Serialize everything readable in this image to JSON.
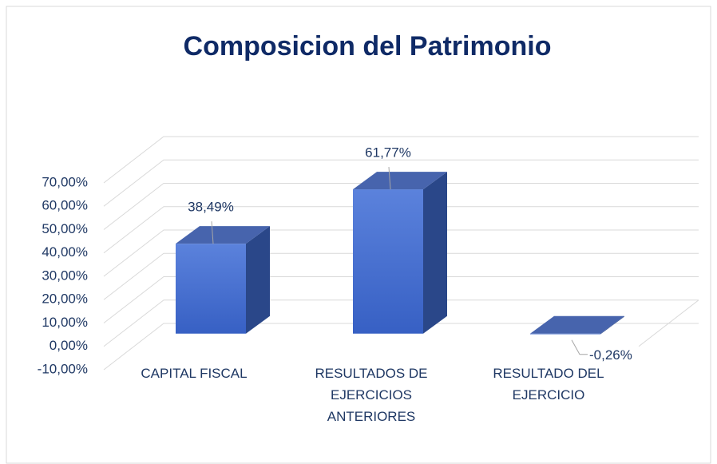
{
  "chart_data": {
    "type": "bar3d",
    "title": "Composicion del Patrimonio",
    "categories": [
      "CAPITAL FISCAL",
      "RESULTADOS DE EJERCICIOS ANTERIORES",
      "RESULTADO DEL EJERCICIO"
    ],
    "values": [
      38.49,
      61.77,
      -0.26
    ],
    "value_labels": [
      "38,49%",
      "61,77%",
      "-0,26%"
    ],
    "color": "#4a72d4",
    "ylim": [
      -10,
      70
    ],
    "yticks": [
      {
        "value": -10,
        "label": "-10,00%"
      },
      {
        "value": 0,
        "label": "0,00%"
      },
      {
        "value": 10,
        "label": "10,00%"
      },
      {
        "value": 20,
        "label": "20,00%"
      },
      {
        "value": 30,
        "label": "30,00%"
      },
      {
        "value": 40,
        "label": "40,00%"
      },
      {
        "value": 50,
        "label": "50,00%"
      },
      {
        "value": 60,
        "label": "60,00%"
      },
      {
        "value": 70,
        "label": "70,00%"
      }
    ],
    "grid": true
  }
}
